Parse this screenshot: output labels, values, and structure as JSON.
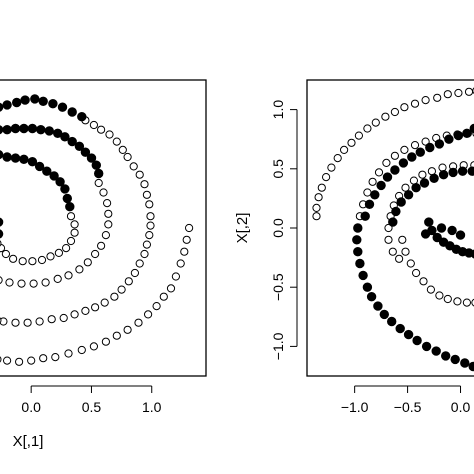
{
  "chart_data": [
    {
      "type": "scatter",
      "title": "",
      "xlabel": "X[,1]",
      "ylabel": "",
      "xlim": [
        -0.3,
        1.45
      ],
      "ylim": [
        -1.25,
        1.25
      ],
      "xticks": [
        "0.0",
        "0.5",
        "1.0"
      ],
      "xtick_values": [
        0,
        0.5,
        1
      ],
      "grid": false,
      "series": [
        {
          "marker": "open-circle",
          "points": [
            [
              0.45,
              0.91
            ],
            [
              0.52,
              0.87
            ],
            [
              0.58,
              0.83
            ],
            [
              0.65,
              0.79
            ],
            [
              0.71,
              0.73
            ],
            [
              0.76,
              0.66
            ],
            [
              0.8,
              0.6
            ],
            [
              0.85,
              0.52
            ],
            [
              0.9,
              0.45
            ],
            [
              0.94,
              0.37
            ],
            [
              0.96,
              0.28
            ],
            [
              0.98,
              0.2
            ],
            [
              0.99,
              0.1
            ],
            [
              0.99,
              0.02
            ],
            [
              0.98,
              -0.06
            ],
            [
              0.96,
              -0.14
            ],
            [
              0.94,
              -0.22
            ],
            [
              0.9,
              -0.3
            ],
            [
              0.86,
              -0.38
            ],
            [
              0.81,
              -0.45
            ],
            [
              0.75,
              -0.52
            ],
            [
              0.69,
              -0.58
            ],
            [
              0.61,
              -0.63
            ],
            [
              0.53,
              -0.67
            ],
            [
              0.45,
              -0.7
            ],
            [
              0.36,
              -0.73
            ],
            [
              0.27,
              -0.76
            ],
            [
              0.17,
              -0.77
            ],
            [
              0.07,
              -0.79
            ],
            [
              -0.03,
              -0.8
            ],
            [
              -0.13,
              -0.8
            ],
            [
              -0.23,
              -0.79
            ],
            [
              -0.28,
              -0.78
            ],
            [
              0.56,
              0.38
            ],
            [
              0.6,
              0.3
            ],
            [
              0.63,
              0.21
            ],
            [
              0.64,
              0.12
            ],
            [
              0.64,
              0.03
            ],
            [
              0.62,
              -0.06
            ],
            [
              0.58,
              -0.15
            ],
            [
              0.53,
              -0.22
            ],
            [
              0.47,
              -0.29
            ],
            [
              0.4,
              -0.35
            ],
            [
              0.31,
              -0.4
            ],
            [
              0.22,
              -0.43
            ],
            [
              0.12,
              -0.46
            ],
            [
              0.02,
              -0.47
            ],
            [
              -0.08,
              -0.47
            ],
            [
              -0.18,
              -0.46
            ],
            [
              -0.27,
              -0.44
            ],
            [
              0.33,
              0.1
            ],
            [
              0.36,
              0.03
            ],
            [
              0.36,
              -0.04
            ],
            [
              0.33,
              -0.11
            ],
            [
              0.29,
              -0.17
            ],
            [
              0.23,
              -0.21
            ],
            [
              0.16,
              -0.24
            ],
            [
              0.09,
              -0.27
            ],
            [
              0.01,
              -0.28
            ],
            [
              -0.07,
              -0.28
            ],
            [
              -0.15,
              -0.26
            ],
            [
              -0.21,
              -0.22
            ],
            [
              -0.25,
              -0.17
            ],
            [
              -0.28,
              -0.13
            ],
            [
              1.31,
              0.0
            ],
            [
              1.29,
              -0.1
            ],
            [
              1.27,
              -0.2
            ],
            [
              1.24,
              -0.3
            ],
            [
              1.2,
              -0.41
            ],
            [
              1.16,
              -0.51
            ],
            [
              1.1,
              -0.58
            ],
            [
              1.04,
              -0.66
            ],
            [
              0.97,
              -0.73
            ],
            [
              0.89,
              -0.8
            ],
            [
              0.8,
              -0.86
            ],
            [
              0.71,
              -0.91
            ],
            [
              0.62,
              -0.96
            ],
            [
              0.52,
              -1.0
            ],
            [
              0.42,
              -1.03
            ],
            [
              0.31,
              -1.06
            ],
            [
              0.2,
              -1.09
            ],
            [
              0.1,
              -1.1
            ],
            [
              0.0,
              -1.12
            ],
            [
              -0.1,
              -1.13
            ],
            [
              -0.2,
              -1.12
            ],
            [
              -0.28,
              -1.11
            ]
          ]
        },
        {
          "marker": "filled-circle",
          "points": [
            [
              -0.27,
              1.02
            ],
            [
              -0.2,
              1.04
            ],
            [
              -0.12,
              1.06
            ],
            [
              -0.05,
              1.08
            ],
            [
              0.03,
              1.09
            ],
            [
              0.1,
              1.07
            ],
            [
              0.18,
              1.05
            ],
            [
              0.26,
              1.02
            ],
            [
              0.34,
              0.98
            ],
            [
              0.42,
              0.94
            ],
            [
              -0.27,
              0.83
            ],
            [
              -0.2,
              0.83
            ],
            [
              -0.13,
              0.84
            ],
            [
              -0.06,
              0.84
            ],
            [
              0.01,
              0.84
            ],
            [
              0.08,
              0.83
            ],
            [
              0.15,
              0.82
            ],
            [
              0.22,
              0.8
            ],
            [
              0.28,
              0.77
            ],
            [
              0.34,
              0.73
            ],
            [
              0.4,
              0.69
            ],
            [
              0.45,
              0.64
            ],
            [
              0.5,
              0.59
            ],
            [
              0.54,
              0.53
            ],
            [
              0.56,
              0.46
            ],
            [
              -0.27,
              0.62
            ],
            [
              -0.2,
              0.6
            ],
            [
              -0.13,
              0.59
            ],
            [
              -0.06,
              0.58
            ],
            [
              0.01,
              0.56
            ],
            [
              0.07,
              0.52
            ],
            [
              0.13,
              0.48
            ],
            [
              0.19,
              0.44
            ],
            [
              0.24,
              0.39
            ],
            [
              0.28,
              0.33
            ],
            [
              0.3,
              0.25
            ],
            [
              0.32,
              0.18
            ],
            [
              -0.27,
              0.05
            ],
            [
              -0.27,
              -0.05
            ]
          ]
        }
      ]
    },
    {
      "type": "scatter",
      "title": "",
      "xlabel": "",
      "ylabel": "X[,2]",
      "xlim": [
        -1.45,
        0.25
      ],
      "ylim": [
        -1.25,
        1.25
      ],
      "xticks": [
        "−1.0",
        "−0.5",
        "0.0"
      ],
      "xtick_values": [
        -1,
        -0.5,
        0
      ],
      "yticks": [
        "−1.0",
        "−0.5",
        "0.0",
        "0.5",
        "1.0"
      ],
      "ytick_values": [
        -1,
        -0.5,
        0,
        0.5,
        1
      ],
      "grid": false,
      "series": [
        {
          "marker": "open-circle",
          "points": [
            [
              -1.36,
              0.1
            ],
            [
              -1.36,
              0.17
            ],
            [
              -1.34,
              0.26
            ],
            [
              -1.31,
              0.34
            ],
            [
              -1.27,
              0.43
            ],
            [
              -1.22,
              0.51
            ],
            [
              -1.16,
              0.59
            ],
            [
              -1.1,
              0.66
            ],
            [
              -1.03,
              0.72
            ],
            [
              -0.96,
              0.78
            ],
            [
              -0.88,
              0.84
            ],
            [
              -0.8,
              0.89
            ],
            [
              -0.71,
              0.94
            ],
            [
              -0.62,
              0.98
            ],
            [
              -0.53,
              1.02
            ],
            [
              -0.43,
              1.05
            ],
            [
              -0.33,
              1.08
            ],
            [
              -0.22,
              1.1
            ],
            [
              -0.12,
              1.13
            ],
            [
              -0.02,
              1.14
            ],
            [
              0.08,
              1.15
            ],
            [
              0.15,
              1.16
            ],
            [
              -0.95,
              0.1
            ],
            [
              -0.92,
              0.2
            ],
            [
              -0.88,
              0.3
            ],
            [
              -0.83,
              0.39
            ],
            [
              -0.77,
              0.47
            ],
            [
              -0.7,
              0.55
            ],
            [
              -0.62,
              0.61
            ],
            [
              -0.53,
              0.66
            ],
            [
              -0.43,
              0.7
            ],
            [
              -0.33,
              0.73
            ],
            [
              -0.23,
              0.76
            ],
            [
              -0.13,
              0.78
            ],
            [
              -0.03,
              0.79
            ],
            [
              0.07,
              0.8
            ],
            [
              0.15,
              0.8
            ],
            [
              -0.68,
              0.0
            ],
            [
              -0.66,
              0.1
            ],
            [
              -0.63,
              0.19
            ],
            [
              -0.58,
              0.27
            ],
            [
              -0.52,
              0.34
            ],
            [
              -0.44,
              0.4
            ],
            [
              -0.36,
              0.45
            ],
            [
              -0.27,
              0.48
            ],
            [
              -0.17,
              0.51
            ],
            [
              -0.07,
              0.52
            ],
            [
              0.03,
              0.53
            ],
            [
              0.13,
              0.53
            ],
            [
              -0.55,
              -0.1
            ],
            [
              -0.52,
              -0.2
            ],
            [
              -0.47,
              -0.3
            ],
            [
              -0.42,
              -0.38
            ],
            [
              -0.35,
              -0.45
            ],
            [
              -0.28,
              -0.52
            ],
            [
              -0.2,
              -0.57
            ],
            [
              -0.12,
              -0.6
            ],
            [
              -0.03,
              -0.62
            ],
            [
              0.06,
              -0.63
            ],
            [
              0.14,
              -0.63
            ],
            [
              -0.68,
              -0.1
            ],
            [
              -0.64,
              -0.2
            ],
            [
              -0.58,
              -0.26
            ]
          ]
        },
        {
          "marker": "filled-circle",
          "points": [
            [
              -0.97,
              0.0
            ],
            [
              -0.98,
              -0.1
            ],
            [
              -0.97,
              -0.2
            ],
            [
              -0.95,
              -0.3
            ],
            [
              -0.92,
              -0.4
            ],
            [
              -0.88,
              -0.5
            ],
            [
              -0.84,
              -0.58
            ],
            [
              -0.78,
              -0.66
            ],
            [
              -0.72,
              -0.73
            ],
            [
              -0.65,
              -0.79
            ],
            [
              -0.57,
              -0.85
            ],
            [
              -0.49,
              -0.9
            ],
            [
              -0.41,
              -0.95
            ],
            [
              -0.32,
              -1.0
            ],
            [
              -0.23,
              -1.04
            ],
            [
              -0.14,
              -1.08
            ],
            [
              -0.05,
              -1.11
            ],
            [
              0.04,
              -1.14
            ],
            [
              0.12,
              -1.17
            ],
            [
              0.18,
              -1.18
            ],
            [
              -0.9,
              0.1
            ],
            [
              -0.86,
              0.2
            ],
            [
              -0.81,
              0.28
            ],
            [
              -0.75,
              0.36
            ],
            [
              -0.69,
              0.43
            ],
            [
              -0.62,
              0.49
            ],
            [
              -0.54,
              0.55
            ],
            [
              -0.46,
              0.6
            ],
            [
              -0.38,
              0.64
            ],
            [
              -0.29,
              0.68
            ],
            [
              -0.2,
              0.71
            ],
            [
              -0.11,
              0.75
            ],
            [
              -0.02,
              0.78
            ],
            [
              0.06,
              0.8
            ],
            [
              0.13,
              0.84
            ],
            [
              0.18,
              0.88
            ],
            [
              -0.64,
              0.05
            ],
            [
              -0.61,
              0.14
            ],
            [
              -0.56,
              0.22
            ],
            [
              -0.49,
              0.28
            ],
            [
              -0.42,
              0.34
            ],
            [
              -0.34,
              0.38
            ],
            [
              -0.25,
              0.42
            ],
            [
              -0.16,
              0.45
            ],
            [
              -0.07,
              0.47
            ],
            [
              0.02,
              0.48
            ],
            [
              0.11,
              0.48
            ],
            [
              -0.3,
              0.05
            ],
            [
              -0.27,
              -0.02
            ],
            [
              -0.22,
              -0.08
            ],
            [
              -0.16,
              -0.12
            ],
            [
              -0.1,
              -0.15
            ],
            [
              -0.04,
              -0.18
            ],
            [
              0.02,
              -0.2
            ],
            [
              0.08,
              -0.21
            ],
            [
              0.14,
              -0.22
            ],
            [
              -0.33,
              -0.05
            ],
            [
              -0.18,
              0.0
            ],
            [
              -0.08,
              -0.02
            ],
            [
              0.0,
              -0.06
            ]
          ]
        }
      ]
    }
  ]
}
